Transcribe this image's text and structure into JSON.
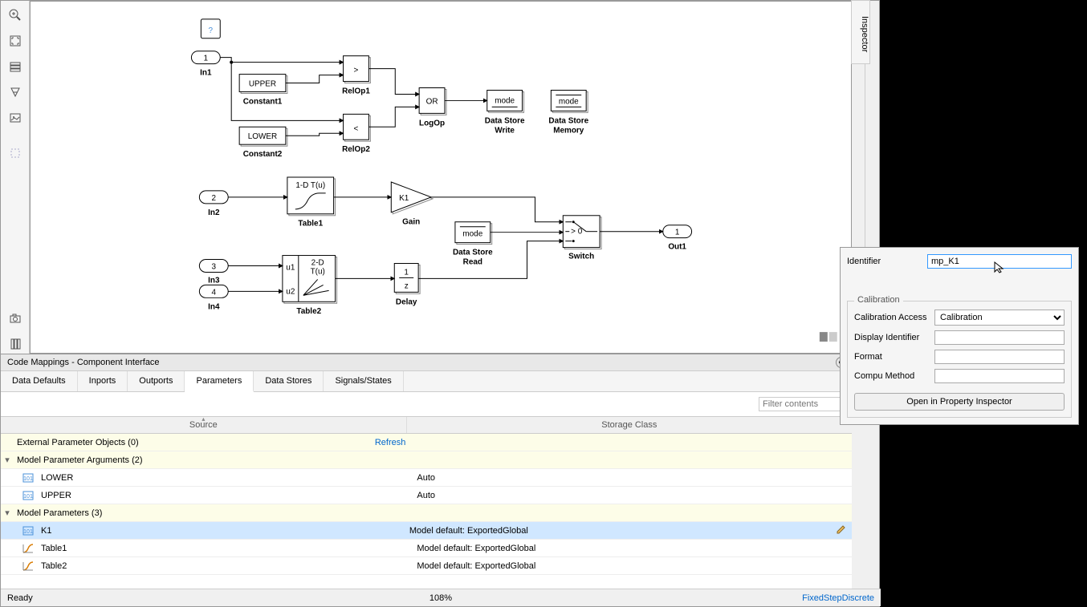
{
  "inspector_tab": "Inspector",
  "canvas": {
    "blocks": {
      "in1": {
        "label": "In1",
        "num": "1"
      },
      "in2": {
        "label": "In2",
        "num": "2"
      },
      "in3": {
        "label": "In3",
        "num": "3"
      },
      "in4": {
        "label": "In4",
        "num": "4"
      },
      "out1": {
        "label": "Out1",
        "num": "1"
      },
      "constant1": {
        "label": "Constant1",
        "value": "UPPER"
      },
      "constant2": {
        "label": "Constant2",
        "value": "LOWER"
      },
      "relop1": {
        "label": "RelOp1",
        "op": ">"
      },
      "relop2": {
        "label": "RelOp2",
        "op": "<"
      },
      "logop": {
        "label": "LogOp",
        "op": "OR"
      },
      "dsw": {
        "label1": "Data Store",
        "label2": "Write",
        "sig": "mode"
      },
      "dsm": {
        "label1": "Data Store",
        "label2": "Memory",
        "sig": "mode"
      },
      "dsr": {
        "label1": "Data Store",
        "label2": "Read",
        "sig": "mode"
      },
      "table1": {
        "label": "Table1",
        "text": "1-D T(u)"
      },
      "table2": {
        "label": "Table2",
        "text1": "2-D",
        "text2": "T(u)",
        "u1": "u1",
        "u2": "u2"
      },
      "gain": {
        "label": "Gain",
        "value": "K1"
      },
      "delay": {
        "label": "Delay",
        "num": "1",
        "den": "z"
      },
      "switch": {
        "label": "Switch",
        "cond": "> 0"
      },
      "help": "?"
    }
  },
  "bottom_panel": {
    "title": "Code Mappings - Component Interface",
    "tabs": [
      "Data Defaults",
      "Inports",
      "Outports",
      "Parameters",
      "Data Stores",
      "Signals/States"
    ],
    "active_tab": 3,
    "filter_placeholder": "Filter contents",
    "columns": {
      "source": "Source",
      "storage": "Storage Class"
    },
    "rows": [
      {
        "type": "group",
        "expand": "",
        "text": "External Parameter Objects (0)",
        "refresh": "Refresh"
      },
      {
        "type": "group",
        "expand": "▾",
        "text": "Model Parameter Arguments (2)"
      },
      {
        "type": "item",
        "icon": "param",
        "name": "LOWER",
        "storage": "Auto"
      },
      {
        "type": "item",
        "icon": "param",
        "name": "UPPER",
        "storage": "Auto"
      },
      {
        "type": "group",
        "expand": "▾",
        "text": "Model Parameters (3)"
      },
      {
        "type": "item",
        "icon": "param",
        "name": "K1",
        "storage": "Model default: ExportedGlobal",
        "selected": true
      },
      {
        "type": "item",
        "icon": "table",
        "name": "Table1",
        "storage": "Model default: ExportedGlobal"
      },
      {
        "type": "item",
        "icon": "table",
        "name": "Table2",
        "storage": "Model default: ExportedGlobal"
      }
    ]
  },
  "prop_panel": {
    "identifier_label": "Identifier",
    "identifier_value": "mp_K1",
    "calibration_legend": "Calibration",
    "cal_access_label": "Calibration Access",
    "cal_access_value": "Calibration",
    "display_id_label": "Display Identifier",
    "display_id_value": "",
    "format_label": "Format",
    "format_value": "",
    "compu_label": "Compu Method",
    "compu_value": "",
    "button": "Open in Property Inspector"
  },
  "status": {
    "ready": "Ready",
    "zoom": "108%",
    "solver": "FixedStepDiscrete"
  }
}
